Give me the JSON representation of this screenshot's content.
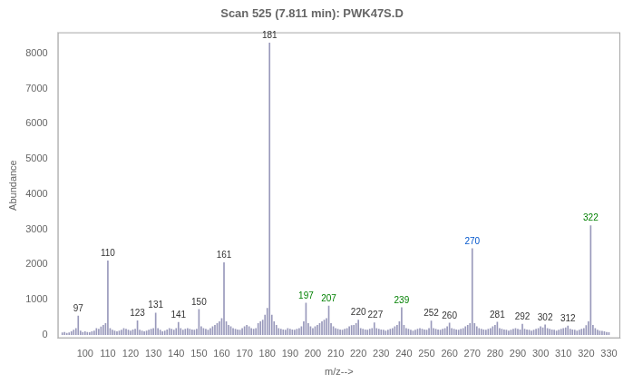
{
  "chart_data": {
    "type": "bar",
    "title": "Scan 525 (7.811 min): PWK47S.D",
    "xlabel": "m/z-->",
    "ylabel": "Abundance",
    "x": [
      90,
      91,
      92,
      93,
      94,
      95,
      96,
      97,
      98,
      99,
      100,
      101,
      102,
      103,
      104,
      105,
      106,
      107,
      108,
      109,
      110,
      111,
      112,
      113,
      114,
      115,
      116,
      117,
      118,
      119,
      120,
      121,
      122,
      123,
      124,
      125,
      126,
      127,
      128,
      129,
      130,
      131,
      132,
      133,
      134,
      135,
      136,
      137,
      138,
      139,
      140,
      141,
      142,
      143,
      144,
      145,
      146,
      147,
      148,
      149,
      150,
      151,
      152,
      153,
      154,
      155,
      156,
      157,
      158,
      159,
      160,
      161,
      162,
      163,
      164,
      165,
      166,
      167,
      168,
      169,
      170,
      171,
      172,
      173,
      174,
      175,
      176,
      177,
      178,
      179,
      180,
      181,
      182,
      183,
      184,
      185,
      186,
      187,
      188,
      189,
      190,
      191,
      192,
      193,
      194,
      195,
      196,
      197,
      198,
      199,
      200,
      201,
      202,
      203,
      204,
      205,
      206,
      207,
      208,
      209,
      210,
      211,
      212,
      213,
      214,
      215,
      216,
      217,
      218,
      219,
      220,
      221,
      222,
      223,
      224,
      225,
      226,
      227,
      228,
      229,
      230,
      231,
      232,
      233,
      234,
      235,
      236,
      237,
      238,
      239,
      240,
      241,
      242,
      243,
      244,
      245,
      246,
      247,
      248,
      249,
      250,
      251,
      252,
      253,
      254,
      255,
      256,
      257,
      258,
      259,
      260,
      261,
      262,
      263,
      264,
      265,
      266,
      267,
      268,
      269,
      270,
      271,
      272,
      273,
      274,
      275,
      276,
      277,
      278,
      279,
      280,
      281,
      282,
      283,
      284,
      285,
      286,
      287,
      288,
      289,
      290,
      291,
      292,
      293,
      294,
      295,
      296,
      297,
      298,
      299,
      300,
      301,
      302,
      303,
      304,
      305,
      306,
      307,
      308,
      309,
      310,
      311,
      312,
      313,
      314,
      315,
      316,
      317,
      318,
      319,
      320,
      321,
      322,
      323,
      324,
      325,
      326,
      327,
      328,
      329,
      330
    ],
    "values": [
      55,
      70,
      45,
      55,
      90,
      130,
      180,
      530,
      110,
      70,
      90,
      70,
      60,
      90,
      110,
      180,
      160,
      220,
      270,
      320,
      2100,
      180,
      130,
      110,
      90,
      110,
      130,
      180,
      160,
      130,
      110,
      140,
      160,
      400,
      130,
      110,
      90,
      110,
      130,
      160,
      180,
      620,
      180,
      130,
      90,
      110,
      140,
      180,
      160,
      130,
      180,
      350,
      180,
      130,
      160,
      180,
      160,
      140,
      130,
      160,
      720,
      230,
      180,
      160,
      130,
      180,
      230,
      270,
      320,
      370,
      460,
      2050,
      370,
      270,
      230,
      180,
      160,
      140,
      130,
      180,
      230,
      270,
      230,
      180,
      160,
      180,
      320,
      370,
      420,
      560,
      750,
      8300,
      560,
      370,
      270,
      180,
      160,
      140,
      130,
      180,
      160,
      140,
      130,
      160,
      180,
      230,
      370,
      900,
      320,
      230,
      180,
      230,
      270,
      320,
      370,
      420,
      460,
      820,
      320,
      230,
      180,
      160,
      140,
      130,
      160,
      180,
      230,
      260,
      270,
      320,
      420,
      180,
      160,
      140,
      130,
      160,
      180,
      340,
      180,
      160,
      140,
      130,
      110,
      130,
      160,
      180,
      230,
      270,
      370,
      770,
      270,
      180,
      160,
      130,
      110,
      130,
      160,
      180,
      160,
      140,
      130,
      180,
      390,
      180,
      160,
      140,
      130,
      160,
      180,
      230,
      330,
      180,
      160,
      140,
      130,
      160,
      180,
      230,
      270,
      320,
      2450,
      320,
      230,
      180,
      160,
      140,
      130,
      160,
      180,
      230,
      270,
      360,
      180,
      160,
      140,
      130,
      110,
      130,
      160,
      180,
      160,
      140,
      300,
      160,
      140,
      130,
      110,
      130,
      160,
      180,
      230,
      200,
      280,
      180,
      160,
      140,
      130,
      110,
      130,
      160,
      180,
      200,
      250,
      160,
      140,
      130,
      110,
      130,
      160,
      180,
      260,
      370,
      3100,
      270,
      180,
      130,
      110,
      100,
      90,
      70,
      60
    ],
    "color": "#9999bb",
    "xlim": [
      88,
      335
    ],
    "ylim": [
      -100,
      8600
    ],
    "xticks": [
      100,
      110,
      120,
      130,
      140,
      150,
      160,
      170,
      180,
      190,
      200,
      210,
      220,
      230,
      240,
      250,
      260,
      270,
      280,
      290,
      300,
      310,
      320,
      330
    ],
    "yticks": [
      0,
      1000,
      2000,
      3000,
      4000,
      5000,
      6000,
      7000,
      8000
    ],
    "grid": false,
    "annotations": [
      {
        "text": "97",
        "x": 97,
        "y": 530,
        "color": "#333333"
      },
      {
        "text": "110",
        "x": 110,
        "y": 2100,
        "color": "#333333"
      },
      {
        "text": "123",
        "x": 123,
        "y": 400,
        "color": "#333333"
      },
      {
        "text": "131",
        "x": 131,
        "y": 620,
        "color": "#333333"
      },
      {
        "text": "141",
        "x": 141,
        "y": 350,
        "color": "#333333"
      },
      {
        "text": "150",
        "x": 150,
        "y": 720,
        "color": "#333333"
      },
      {
        "text": "161",
        "x": 161,
        "y": 2050,
        "color": "#333333"
      },
      {
        "text": "181",
        "x": 181,
        "y": 8300,
        "color": "#333333"
      },
      {
        "text": "197",
        "x": 197,
        "y": 900,
        "color": "#008000"
      },
      {
        "text": "207",
        "x": 207,
        "y": 820,
        "color": "#008000"
      },
      {
        "text": "220",
        "x": 220,
        "y": 420,
        "color": "#333333"
      },
      {
        "text": "227",
        "x": 227,
        "y": 340,
        "color": "#333333"
      },
      {
        "text": "239",
        "x": 239,
        "y": 770,
        "color": "#008000"
      },
      {
        "text": "252",
        "x": 252,
        "y": 390,
        "color": "#333333"
      },
      {
        "text": "260",
        "x": 260,
        "y": 330,
        "color": "#333333"
      },
      {
        "text": "270",
        "x": 270,
        "y": 2450,
        "color": "#0055cc"
      },
      {
        "text": "281",
        "x": 281,
        "y": 360,
        "color": "#333333"
      },
      {
        "text": "292",
        "x": 292,
        "y": 300,
        "color": "#333333"
      },
      {
        "text": "302",
        "x": 302,
        "y": 280,
        "color": "#333333"
      },
      {
        "text": "312",
        "x": 312,
        "y": 250,
        "color": "#333333"
      },
      {
        "text": "322",
        "x": 322,
        "y": 3100,
        "color": "#008000"
      }
    ]
  }
}
